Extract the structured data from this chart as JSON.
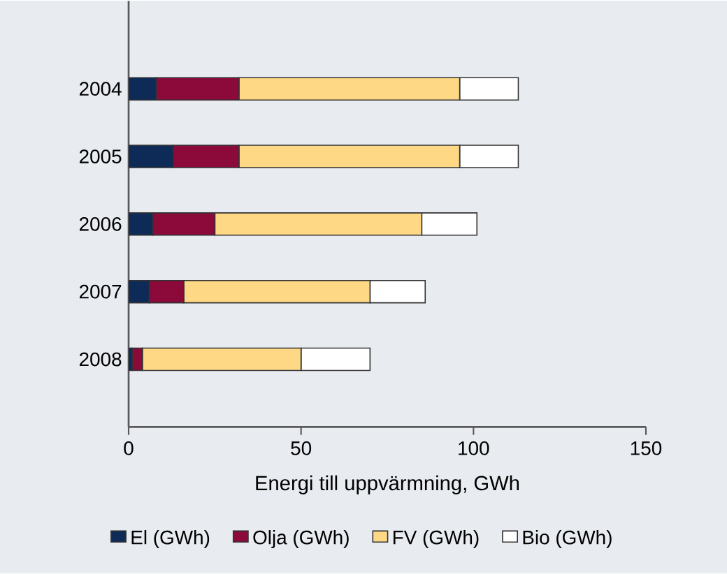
{
  "chart_data": {
    "type": "bar",
    "orientation": "horizontal",
    "stacked": true,
    "xlabel": "Energi till uppvärmning, GWh",
    "categories": [
      "2004",
      "2005",
      "2006",
      "2007",
      "2008"
    ],
    "series": [
      {
        "name": "El (GWh)",
        "color": "#0d2b56",
        "values": [
          8,
          13,
          7,
          6,
          1
        ]
      },
      {
        "name": "Olja (GWh)",
        "color": "#8b0a3a",
        "values": [
          24,
          19,
          18,
          10,
          3
        ]
      },
      {
        "name": "FV (GWh)",
        "color": "#ffd886",
        "values": [
          64,
          64,
          60,
          54,
          46
        ]
      },
      {
        "name": "Bio (GWh)",
        "color": "#ffffff",
        "values": [
          17,
          17,
          16,
          16,
          20
        ]
      }
    ],
    "xlim": [
      0,
      150
    ],
    "xticks": [
      0,
      50,
      100,
      150
    ],
    "legend": "bottom",
    "grid": false
  }
}
